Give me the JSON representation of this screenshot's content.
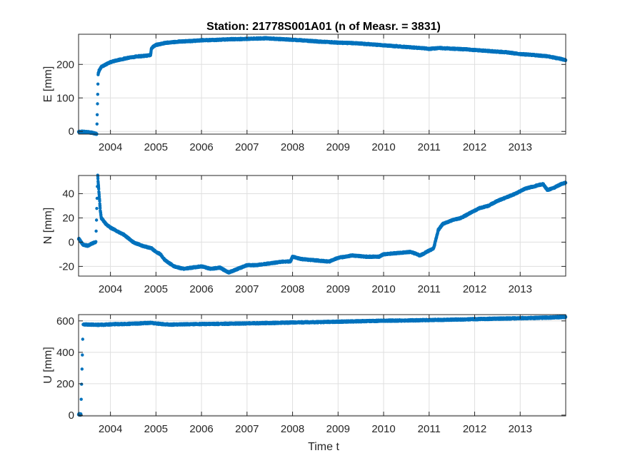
{
  "figure": {
    "title": "Station: 21778S001A01 (n of Measr. = 3831)",
    "xlabel": "Time t",
    "colors": {
      "marker": "#0072BD",
      "grid": "#DFDFDF",
      "axis": "#262626"
    }
  },
  "chart_data": [
    {
      "type": "scatter",
      "title": "Station: 21778S001A01 (n of Measr. = 3831)",
      "xlabel": "",
      "ylabel": "E [mm]",
      "xlim": [
        2003.3,
        2014.0
      ],
      "ylim": [
        -8,
        290
      ],
      "xticks": [
        2004,
        2005,
        2006,
        2007,
        2008,
        2009,
        2010,
        2011,
        2012,
        2013
      ],
      "yticks": [
        0,
        100,
        200
      ],
      "grid": true,
      "series": [
        {
          "color": "#0072BD",
          "points": [
            [
              2003.3,
              -1
            ],
            [
              2003.4,
              -1
            ],
            [
              2003.5,
              -2
            ],
            [
              2003.6,
              -4
            ],
            [
              2003.7,
              -7
            ],
            [
              2003.73,
              170
            ],
            [
              2003.75,
              182
            ],
            [
              2003.8,
              192
            ],
            [
              2003.9,
              200
            ],
            [
              2004.0,
              207
            ],
            [
              2004.2,
              214
            ],
            [
              2004.4,
              220
            ],
            [
              2004.6,
              224
            ],
            [
              2004.8,
              226
            ],
            [
              2004.88,
              228
            ],
            [
              2004.9,
              248
            ],
            [
              2004.95,
              254
            ],
            [
              2005.0,
              258
            ],
            [
              2005.2,
              264
            ],
            [
              2005.5,
              268
            ],
            [
              2005.8,
              270
            ],
            [
              2006.0,
              272
            ],
            [
              2006.3,
              273
            ],
            [
              2006.6,
              275
            ],
            [
              2007.0,
              276
            ],
            [
              2007.4,
              278
            ],
            [
              2007.8,
              275
            ],
            [
              2008.2,
              272
            ],
            [
              2008.6,
              268
            ],
            [
              2009.0,
              265
            ],
            [
              2009.4,
              263
            ],
            [
              2009.8,
              259
            ],
            [
              2010.2,
              255
            ],
            [
              2010.6,
              251
            ],
            [
              2010.9,
              248
            ],
            [
              2011.0,
              246
            ],
            [
              2011.2,
              249
            ],
            [
              2011.5,
              247
            ],
            [
              2011.8,
              245
            ],
            [
              2012.1,
              242
            ],
            [
              2012.4,
              239
            ],
            [
              2012.7,
              236
            ],
            [
              2013.0,
              231
            ],
            [
              2013.3,
              228
            ],
            [
              2013.6,
              224
            ],
            [
              2013.8,
              219
            ],
            [
              2014.0,
              213
            ]
          ]
        }
      ]
    },
    {
      "type": "scatter",
      "xlabel": "",
      "ylabel": "N [mm]",
      "xlim": [
        2003.3,
        2014.0
      ],
      "ylim": [
        -28,
        55
      ],
      "xticks": [
        2004,
        2005,
        2006,
        2007,
        2008,
        2009,
        2010,
        2011,
        2012,
        2013
      ],
      "yticks": [
        -20,
        0,
        20,
        40
      ],
      "grid": true,
      "series": [
        {
          "color": "#0072BD",
          "points": [
            [
              2003.3,
              3
            ],
            [
              2003.4,
              -2
            ],
            [
              2003.5,
              -3
            ],
            [
              2003.6,
              -1
            ],
            [
              2003.68,
              0
            ],
            [
              2003.72,
              55
            ],
            [
              2003.74,
              45
            ],
            [
              2003.76,
              35
            ],
            [
              2003.78,
              25
            ],
            [
              2003.8,
              20
            ],
            [
              2003.9,
              15
            ],
            [
              2004.0,
              12
            ],
            [
              2004.1,
              10
            ],
            [
              2004.3,
              6
            ],
            [
              2004.5,
              0
            ],
            [
              2004.7,
              -3
            ],
            [
              2004.9,
              -5
            ],
            [
              2005.0,
              -8
            ],
            [
              2005.1,
              -10
            ],
            [
              2005.2,
              -15
            ],
            [
              2005.4,
              -20
            ],
            [
              2005.6,
              -22
            ],
            [
              2005.8,
              -21
            ],
            [
              2006.0,
              -20
            ],
            [
              2006.2,
              -22
            ],
            [
              2006.4,
              -21
            ],
            [
              2006.6,
              -25
            ],
            [
              2006.8,
              -22
            ],
            [
              2007.0,
              -19
            ],
            [
              2007.2,
              -19
            ],
            [
              2007.4,
              -18
            ],
            [
              2007.6,
              -17
            ],
            [
              2007.8,
              -16
            ],
            [
              2007.95,
              -16
            ],
            [
              2008.0,
              -12
            ],
            [
              2008.2,
              -14
            ],
            [
              2008.5,
              -15
            ],
            [
              2008.8,
              -16
            ],
            [
              2009.0,
              -13
            ],
            [
              2009.3,
              -11
            ],
            [
              2009.6,
              -12
            ],
            [
              2009.9,
              -12
            ],
            [
              2010.0,
              -10
            ],
            [
              2010.3,
              -9
            ],
            [
              2010.6,
              -8
            ],
            [
              2010.8,
              -11
            ],
            [
              2011.0,
              -7
            ],
            [
              2011.1,
              -5
            ],
            [
              2011.2,
              10
            ],
            [
              2011.3,
              15
            ],
            [
              2011.5,
              18
            ],
            [
              2011.7,
              20
            ],
            [
              2011.9,
              24
            ],
            [
              2012.1,
              28
            ],
            [
              2012.3,
              30
            ],
            [
              2012.5,
              34
            ],
            [
              2012.7,
              37
            ],
            [
              2012.9,
              40
            ],
            [
              2013.1,
              44
            ],
            [
              2013.3,
              46
            ],
            [
              2013.5,
              48
            ],
            [
              2013.6,
              43
            ],
            [
              2013.75,
              45
            ],
            [
              2013.9,
              48
            ],
            [
              2014.0,
              49
            ]
          ]
        }
      ]
    },
    {
      "type": "scatter",
      "xlabel": "Time t",
      "ylabel": "U [mm]",
      "xlim": [
        2003.3,
        2014.0
      ],
      "ylim": [
        -5,
        640
      ],
      "xticks": [
        2004,
        2005,
        2006,
        2007,
        2008,
        2009,
        2010,
        2011,
        2012,
        2013
      ],
      "yticks": [
        0,
        200,
        400,
        600
      ],
      "grid": true,
      "series": [
        {
          "color": "#0072BD",
          "points": [
            [
              2003.3,
              5
            ],
            [
              2003.35,
              4
            ],
            [
              2003.4,
              578
            ],
            [
              2003.6,
              576
            ],
            [
              2003.8,
              575
            ],
            [
              2004.0,
              578
            ],
            [
              2004.3,
              580
            ],
            [
              2004.6,
              583
            ],
            [
              2004.9,
              588
            ],
            [
              2005.0,
              583
            ],
            [
              2005.3,
              576
            ],
            [
              2005.6,
              578
            ],
            [
              2006.0,
              580
            ],
            [
              2006.4,
              581
            ],
            [
              2006.8,
              583
            ],
            [
              2007.2,
              585
            ],
            [
              2007.6,
              587
            ],
            [
              2008.0,
              590
            ],
            [
              2008.5,
              592
            ],
            [
              2009.0,
              595
            ],
            [
              2009.5,
              598
            ],
            [
              2010.0,
              601
            ],
            [
              2010.5,
              603
            ],
            [
              2011.0,
              605
            ],
            [
              2011.5,
              608
            ],
            [
              2012.0,
              611
            ],
            [
              2012.5,
              614
            ],
            [
              2013.0,
              617
            ],
            [
              2013.5,
              620
            ],
            [
              2014.0,
              625
            ]
          ]
        }
      ]
    }
  ]
}
